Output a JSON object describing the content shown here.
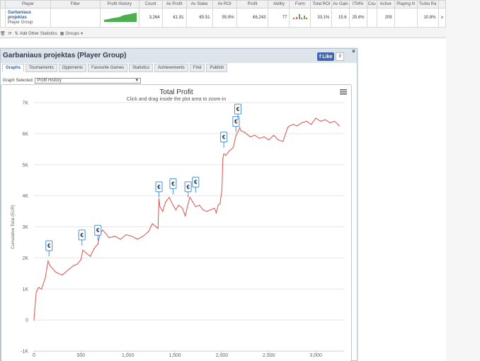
{
  "stats": {
    "headers": [
      "Player",
      "Filter",
      "Profit History",
      "Count",
      "Av Profit",
      "Av Stake",
      "Av ROI",
      "Profit",
      "Ability",
      "Form",
      "Total ROI",
      "Av Gain",
      "ITM%",
      "Cou",
      "Active",
      "Playing N",
      "Turbo Ra"
    ],
    "row": {
      "player_name_1": "Garbaniaus",
      "player_name_2": "projektas",
      "player_type": "Player Group",
      "filter": "",
      "count": "3,264",
      "av_profit": "€1.91",
      "av_stake": "€5.51",
      "av_roi": "55.9%",
      "profit": "€6,243",
      "ability": "77",
      "total_roi": "33.1%",
      "av_gain": "15.6",
      "itm": "25.6%",
      "cou": "",
      "active": "209",
      "playing_n": "",
      "turbo": "10.8%",
      "trailing": "≥"
    },
    "toolbar": {
      "add_stats": "Add Other Statistics",
      "groups": "Groups"
    }
  },
  "panel": {
    "title": "Garbaniaus projektas (Player Group)",
    "fb_like": "Like",
    "fb_count": "0",
    "close": "×",
    "tabs": [
      "Graphs",
      "Tournaments",
      "Opponents",
      "Favourite Games",
      "Statistics",
      "Achievements",
      "Find",
      "Publish"
    ],
    "active_tab": "Graphs",
    "graph_selected_label": "Graph Selected:",
    "graph_selected_value": "Profit History"
  },
  "chart_data": {
    "type": "line",
    "title": "Total Profit",
    "subtitle": "Click and drag inside the plot area to zoom-in",
    "ylabel": "Cumulative Total (EUR)",
    "xlabel": "",
    "xlim": [
      0,
      3300
    ],
    "ylim": [
      -1000,
      7000
    ],
    "x_ticks": [
      "0",
      "500",
      "1,000",
      "1,500",
      "2,000",
      "2,500",
      "3,000"
    ],
    "x_tick_values": [
      0,
      500,
      1000,
      1500,
      2000,
      2500,
      3000
    ],
    "y_ticks": [
      "7K",
      "6K",
      "5K",
      "4K",
      "3K",
      "2K",
      "1K",
      "0",
      "-1K"
    ],
    "y_tick_values": [
      7000,
      6000,
      5000,
      4000,
      3000,
      2000,
      1000,
      0,
      -1000
    ],
    "grid": true,
    "line_color": "#d9534f",
    "series": [
      {
        "x": [
          0,
          10,
          25,
          50,
          80,
          120,
          150,
          170,
          200,
          230,
          260,
          300,
          340,
          380,
          420,
          460,
          500,
          520,
          560,
          600,
          640,
          680,
          700,
          730,
          760,
          800,
          860,
          920,
          980,
          1040,
          1100,
          1160,
          1220,
          1260,
          1300,
          1320,
          1330,
          1340,
          1370,
          1400,
          1440,
          1480,
          1510,
          1540,
          1580,
          1610,
          1640,
          1660,
          1690,
          1720,
          1760,
          1800,
          1840,
          1880,
          1920,
          1940,
          1960,
          1980,
          2000,
          2010,
          2020,
          2040,
          2080,
          2120,
          2150,
          2170,
          2190,
          2200,
          2240,
          2300,
          2350,
          2400,
          2450,
          2500,
          2550,
          2600,
          2650,
          2700,
          2720,
          2760,
          2800,
          2850,
          2900,
          2950,
          3000,
          3050,
          3100,
          3150,
          3200,
          3250
        ],
        "y": [
          0,
          400,
          900,
          1050,
          1000,
          1350,
          1900,
          1750,
          1650,
          1550,
          1500,
          1450,
          1550,
          1650,
          1750,
          1800,
          1950,
          2250,
          2150,
          2050,
          2300,
          2450,
          2750,
          2900,
          2800,
          2650,
          2700,
          2600,
          2750,
          2700,
          2600,
          2700,
          2850,
          3100,
          3000,
          2950,
          3900,
          3650,
          3500,
          3800,
          3950,
          3700,
          3550,
          3700,
          3600,
          3350,
          3750,
          3950,
          3800,
          3650,
          3700,
          3550,
          3500,
          3550,
          3600,
          3450,
          3700,
          3750,
          4200,
          5200,
          5350,
          5300,
          5450,
          5550,
          5950,
          6050,
          6200,
          6100,
          6050,
          5900,
          5950,
          5850,
          5900,
          5800,
          5950,
          5800,
          5750,
          6200,
          6250,
          6300,
          6250,
          6350,
          6400,
          6300,
          6500,
          6400,
          6450,
          6350,
          6400,
          6250
        ]
      }
    ],
    "flags": [
      {
        "x": 160,
        "y": 2050,
        "label": "€"
      },
      {
        "x": 510,
        "y": 2400,
        "label": "€"
      },
      {
        "x": 680,
        "y": 2550,
        "label": "€"
      },
      {
        "x": 1330,
        "y": 3950,
        "label": "€"
      },
      {
        "x": 1480,
        "y": 4050,
        "label": "€"
      },
      {
        "x": 1640,
        "y": 3950,
        "label": "€"
      },
      {
        "x": 1720,
        "y": 4100,
        "label": "€"
      },
      {
        "x": 2020,
        "y": 5550,
        "label": "€"
      },
      {
        "x": 2150,
        "y": 6050,
        "label": "€"
      },
      {
        "x": 2170,
        "y": 6450,
        "label": "€"
      }
    ]
  }
}
